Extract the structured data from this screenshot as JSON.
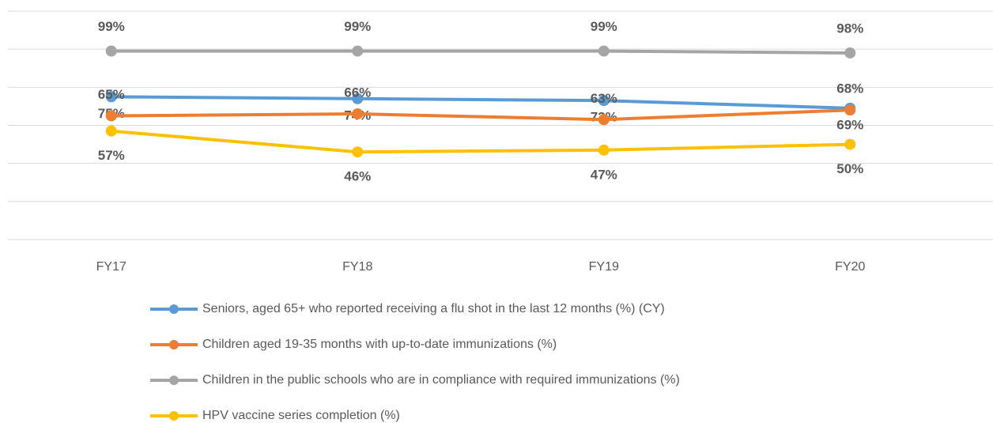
{
  "chart_data": {
    "type": "line",
    "categories": [
      "FY17",
      "FY18",
      "FY19",
      "FY20"
    ],
    "series": [
      {
        "name": "Seniors, aged 65+ who reported receiving a flu shot in the last 12 months (%) (CY)",
        "color": "#5b9bd5",
        "values": [
          75,
          74,
          73,
          69
        ],
        "value_labels": [
          "75%",
          "74%",
          "73%",
          "69%"
        ]
      },
      {
        "name": "Children aged 19-35 months with up-to-date immunizations (%)",
        "color": "#ed7d31",
        "values": [
          65,
          66,
          63,
          68
        ],
        "value_labels": [
          "65%",
          "66%",
          "63%",
          "68%"
        ]
      },
      {
        "name": "Children in the public schools who are in compliance with required immunizations (%)",
        "color": "#a5a5a5",
        "values": [
          99,
          99,
          99,
          98
        ],
        "value_labels": [
          "99%",
          "99%",
          "99%",
          "98%"
        ]
      },
      {
        "name": "HPV vaccine series completion (%)",
        "color": "#ffc000",
        "values": [
          57,
          46,
          47,
          50
        ],
        "value_labels": [
          "57%",
          "46%",
          "47%",
          "50%"
        ]
      }
    ],
    "ylim": [
      0,
      120
    ],
    "yticks": [
      0,
      20,
      40,
      60,
      80,
      100,
      120
    ],
    "grid": true
  }
}
